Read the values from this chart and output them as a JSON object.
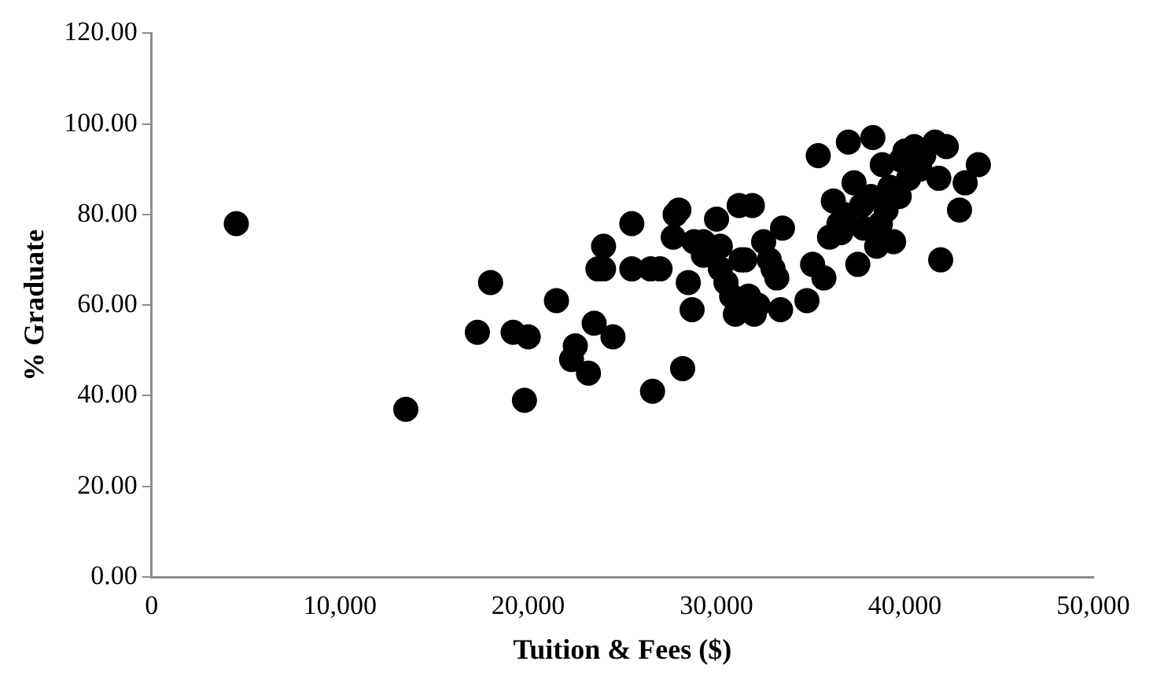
{
  "chart_data": {
    "type": "scatter",
    "xlabel": "Tuition & Fees ($)",
    "ylabel": "% Graduate",
    "xlim": [
      0,
      50000
    ],
    "ylim": [
      0,
      120
    ],
    "xticks": [
      {
        "value": 0,
        "label": "0"
      },
      {
        "value": 10000,
        "label": "10,000"
      },
      {
        "value": 20000,
        "label": "20,000"
      },
      {
        "value": 30000,
        "label": "30,000"
      },
      {
        "value": 40000,
        "label": "40,000"
      },
      {
        "value": 50000,
        "label": "50,000"
      }
    ],
    "yticks": [
      {
        "value": 0,
        "label": "0.00"
      },
      {
        "value": 20,
        "label": "20.00"
      },
      {
        "value": 40,
        "label": "40.00"
      },
      {
        "value": 60,
        "label": "60.00"
      },
      {
        "value": 80,
        "label": "80.00"
      },
      {
        "value": 100,
        "label": "100.00"
      },
      {
        "value": 120,
        "label": "120.00"
      }
    ],
    "grid": false,
    "legend": false,
    "marker": "circle",
    "series": [
      {
        "color": "#000000",
        "x": [
          4500,
          13500,
          17300,
          18000,
          19200,
          20000,
          19800,
          21500,
          22300,
          22500,
          23200,
          23500,
          23700,
          24000,
          24500,
          25500,
          25500,
          26500,
          27000,
          26600,
          27700,
          27800,
          28000,
          28200,
          28500,
          28700,
          28800,
          29300,
          30000,
          30200,
          30500,
          30800,
          31000,
          31200,
          31500,
          31700,
          31900,
          32000,
          32200,
          32500,
          32800,
          33000,
          33200,
          33400,
          33500,
          34800,
          35100,
          35400,
          35700,
          36000,
          36200,
          36500,
          36800,
          37000,
          37300,
          37500,
          37800,
          38200,
          38300,
          38500,
          38800,
          39000,
          39200,
          39400,
          39800,
          40000,
          40200,
          40500,
          40800,
          41000,
          41600,
          41800,
          41900,
          42200,
          42900,
          43200,
          43900,
          39700,
          38700,
          37700,
          36600,
          30200,
          29300,
          31300,
          24000
        ],
        "values": [
          78,
          37,
          54,
          65,
          54,
          53,
          39,
          61,
          48,
          51,
          45,
          56,
          68,
          73,
          53,
          78,
          68,
          68,
          68,
          41,
          75,
          80,
          81,
          46,
          65,
          59,
          74,
          71,
          79,
          73,
          65,
          62,
          58,
          82,
          70,
          62,
          82,
          58,
          60,
          74,
          70,
          68,
          66,
          59,
          77,
          61,
          69,
          93,
          66,
          75,
          83,
          78,
          80,
          96,
          87,
          69,
          77,
          84,
          97,
          73,
          91,
          81,
          86,
          74,
          92,
          94,
          88,
          95,
          90,
          93,
          96,
          88,
          70,
          95,
          81,
          87,
          91,
          84,
          78,
          82,
          76,
          68,
          74,
          70,
          68
        ]
      }
    ]
  }
}
